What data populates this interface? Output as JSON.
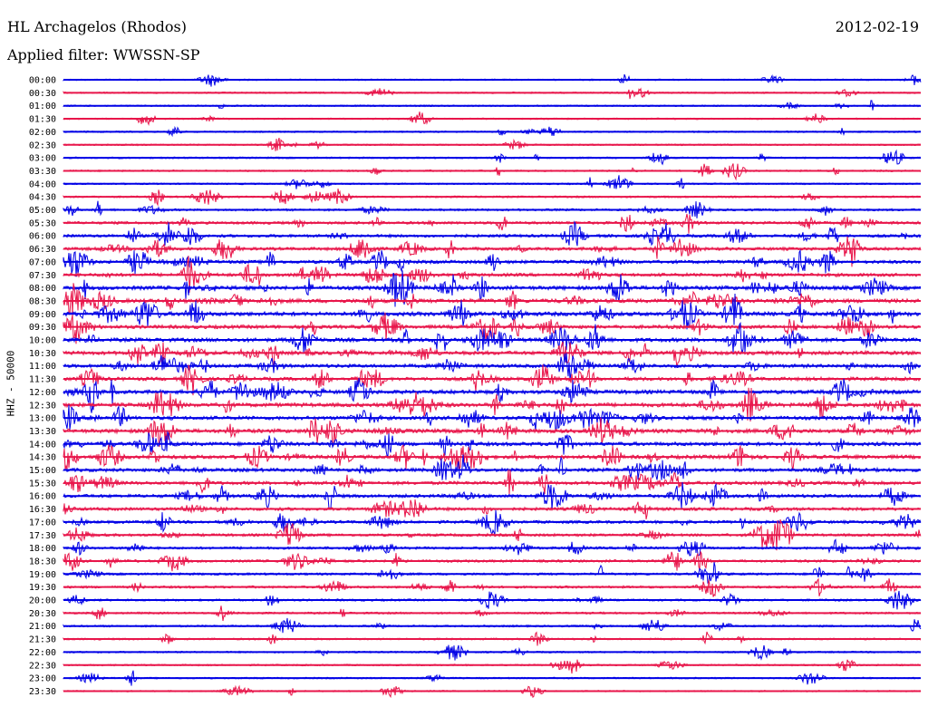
{
  "header": {
    "station": "HL Archagelos (Rhodos)",
    "date": "2012-02-19",
    "filter": "Applied filter: WWSSN-SP"
  },
  "chart_data": {
    "type": "line",
    "title": "HL Archagelos (Rhodos)",
    "subtitle": "Applied filter: WWSSN-SP",
    "date": "2012-02-19",
    "ylabel": "HHZ - 50000",
    "xlabel": "",
    "grid": false,
    "trace_colors": [
      "#0000e6",
      "#e8154a"
    ],
    "y_tick_labels": [
      "00:00",
      "00:30",
      "01:00",
      "01:30",
      "02:00",
      "02:30",
      "03:00",
      "03:30",
      "04:00",
      "04:30",
      "05:00",
      "05:30",
      "06:00",
      "06:30",
      "07:00",
      "07:30",
      "08:00",
      "08:30",
      "09:00",
      "09:30",
      "10:00",
      "10:30",
      "11:00",
      "11:30",
      "12:00",
      "12:30",
      "13:00",
      "13:30",
      "14:00",
      "14:30",
      "15:00",
      "15:30",
      "16:00",
      "16:30",
      "17:00",
      "17:30",
      "18:00",
      "18:30",
      "19:00",
      "19:30",
      "20:00",
      "20:30",
      "21:00",
      "21:30",
      "22:00",
      "22:30",
      "23:00",
      "23:30"
    ],
    "activity_level": [
      0.1,
      0.12,
      0.1,
      0.1,
      0.12,
      0.1,
      0.14,
      0.16,
      0.12,
      0.18,
      0.28,
      0.4,
      0.45,
      0.5,
      0.55,
      0.55,
      0.7,
      0.7,
      0.75,
      0.6,
      0.7,
      0.65,
      0.6,
      0.6,
      0.7,
      0.7,
      0.65,
      0.7,
      0.65,
      0.65,
      0.6,
      0.55,
      0.55,
      0.5,
      0.45,
      0.4,
      0.35,
      0.35,
      0.3,
      0.3,
      0.25,
      0.22,
      0.2,
      0.18,
      0.15,
      0.12,
      0.12,
      0.1
    ],
    "x_range_minutes": [
      0,
      30
    ]
  }
}
